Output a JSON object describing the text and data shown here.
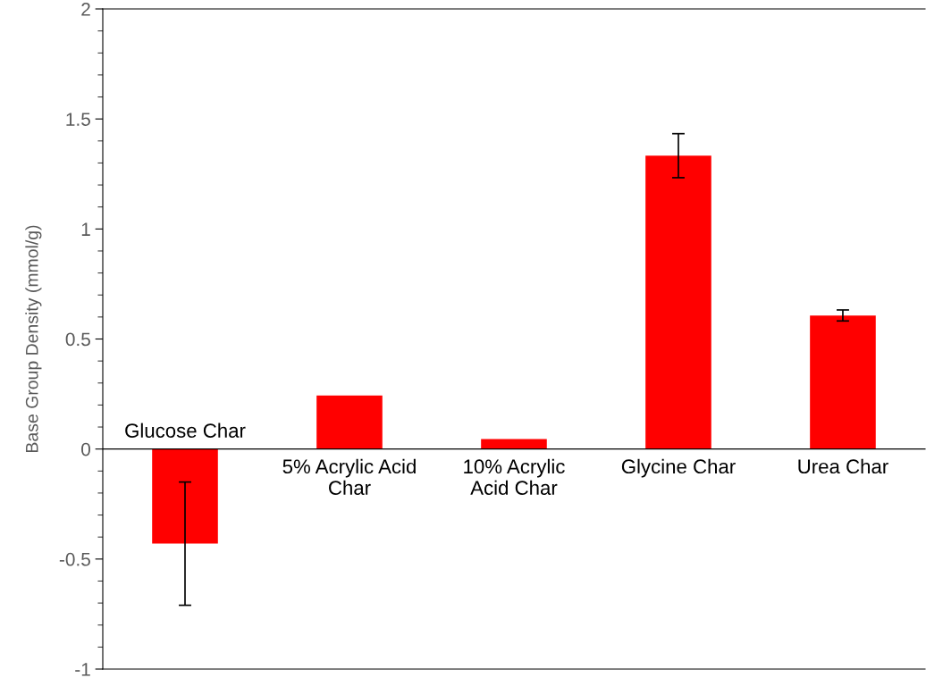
{
  "chart_data": {
    "type": "bar",
    "ylabel": "Base Group Density (mmol/g)",
    "categories": [
      "Glucose Char",
      "5% Acrylic Acid\nChar",
      "10% Acrylic\nAcid Char",
      "Glycine Char",
      "Urea Char"
    ],
    "values": [
      -0.43,
      0.243,
      0.045,
      1.333,
      0.607
    ],
    "errors": [
      0.28,
      null,
      null,
      0.1,
      0.025
    ],
    "color": "#ff0000",
    "ylim": [
      -1,
      2
    ],
    "yticks": [
      -1,
      -0.5,
      0,
      0.5,
      1,
      1.5,
      2
    ],
    "grid": false,
    "legend": false
  }
}
